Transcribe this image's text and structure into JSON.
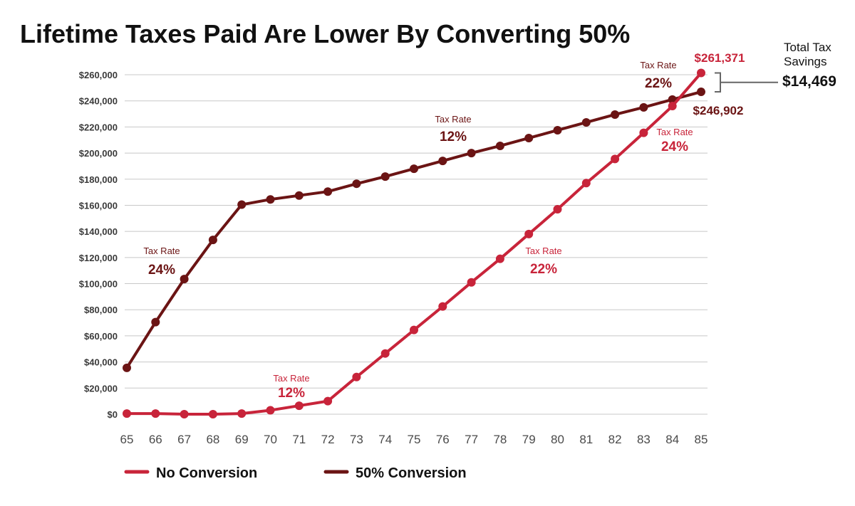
{
  "chart_data": {
    "type": "line",
    "title": "Lifetime Taxes Paid Are Lower By Converting 50%",
    "xlabel": "",
    "ylabel": "",
    "x": [
      65,
      66,
      67,
      68,
      69,
      70,
      71,
      72,
      73,
      74,
      75,
      76,
      77,
      78,
      79,
      80,
      81,
      82,
      83,
      84,
      85
    ],
    "ylim": [
      0,
      260000
    ],
    "yticks": [
      0,
      20000,
      40000,
      60000,
      80000,
      100000,
      120000,
      140000,
      160000,
      180000,
      200000,
      220000,
      240000,
      260000
    ],
    "ytick_labels": [
      "$0",
      "$20,000",
      "$40,000",
      "$60,000",
      "$80,000",
      "$100,000",
      "$120,000",
      "$140,000",
      "$160,000",
      "$180,000",
      "$200,000",
      "$220,000",
      "$240,000",
      "$260,000"
    ],
    "grid": true,
    "legend_position": "bottom-left",
    "series": [
      {
        "name": "No Conversion",
        "color": "#c8243a",
        "values": [
          500,
          500,
          0,
          0,
          500,
          3000,
          6500,
          10000,
          28500,
          46500,
          64500,
          82500,
          101000,
          119000,
          138000,
          157000,
          177000,
          195500,
          215500,
          236000,
          261371
        ]
      },
      {
        "name": "50% Conversion",
        "color": "#6b1414",
        "values": [
          35500,
          70500,
          103500,
          133500,
          160500,
          164500,
          167500,
          170500,
          176500,
          182000,
          188000,
          194000,
          200000,
          205500,
          211500,
          217500,
          223500,
          229500,
          235000,
          241000,
          246902
        ]
      }
    ],
    "end_labels": [
      {
        "series": 0,
        "text": "$261,371"
      },
      {
        "series": 1,
        "text": "$246,902"
      }
    ],
    "annotations": [
      {
        "label": "Tax Rate",
        "value": "24%",
        "color": "#6b1414"
      },
      {
        "label": "Tax Rate",
        "value": "12%",
        "color": "#6b1414"
      },
      {
        "label": "Tax Rate",
        "value": "22%",
        "color": "#6b1414"
      },
      {
        "label": "Tax Rate",
        "value": "12%",
        "color": "#c8243a"
      },
      {
        "label": "Tax Rate",
        "value": "22%",
        "color": "#c8243a"
      },
      {
        "label": "Tax Rate",
        "value": "24%",
        "color": "#c8243a"
      }
    ],
    "savings": {
      "label_line1": "Total Tax",
      "label_line2": "Savings",
      "value": "$14,469"
    }
  }
}
